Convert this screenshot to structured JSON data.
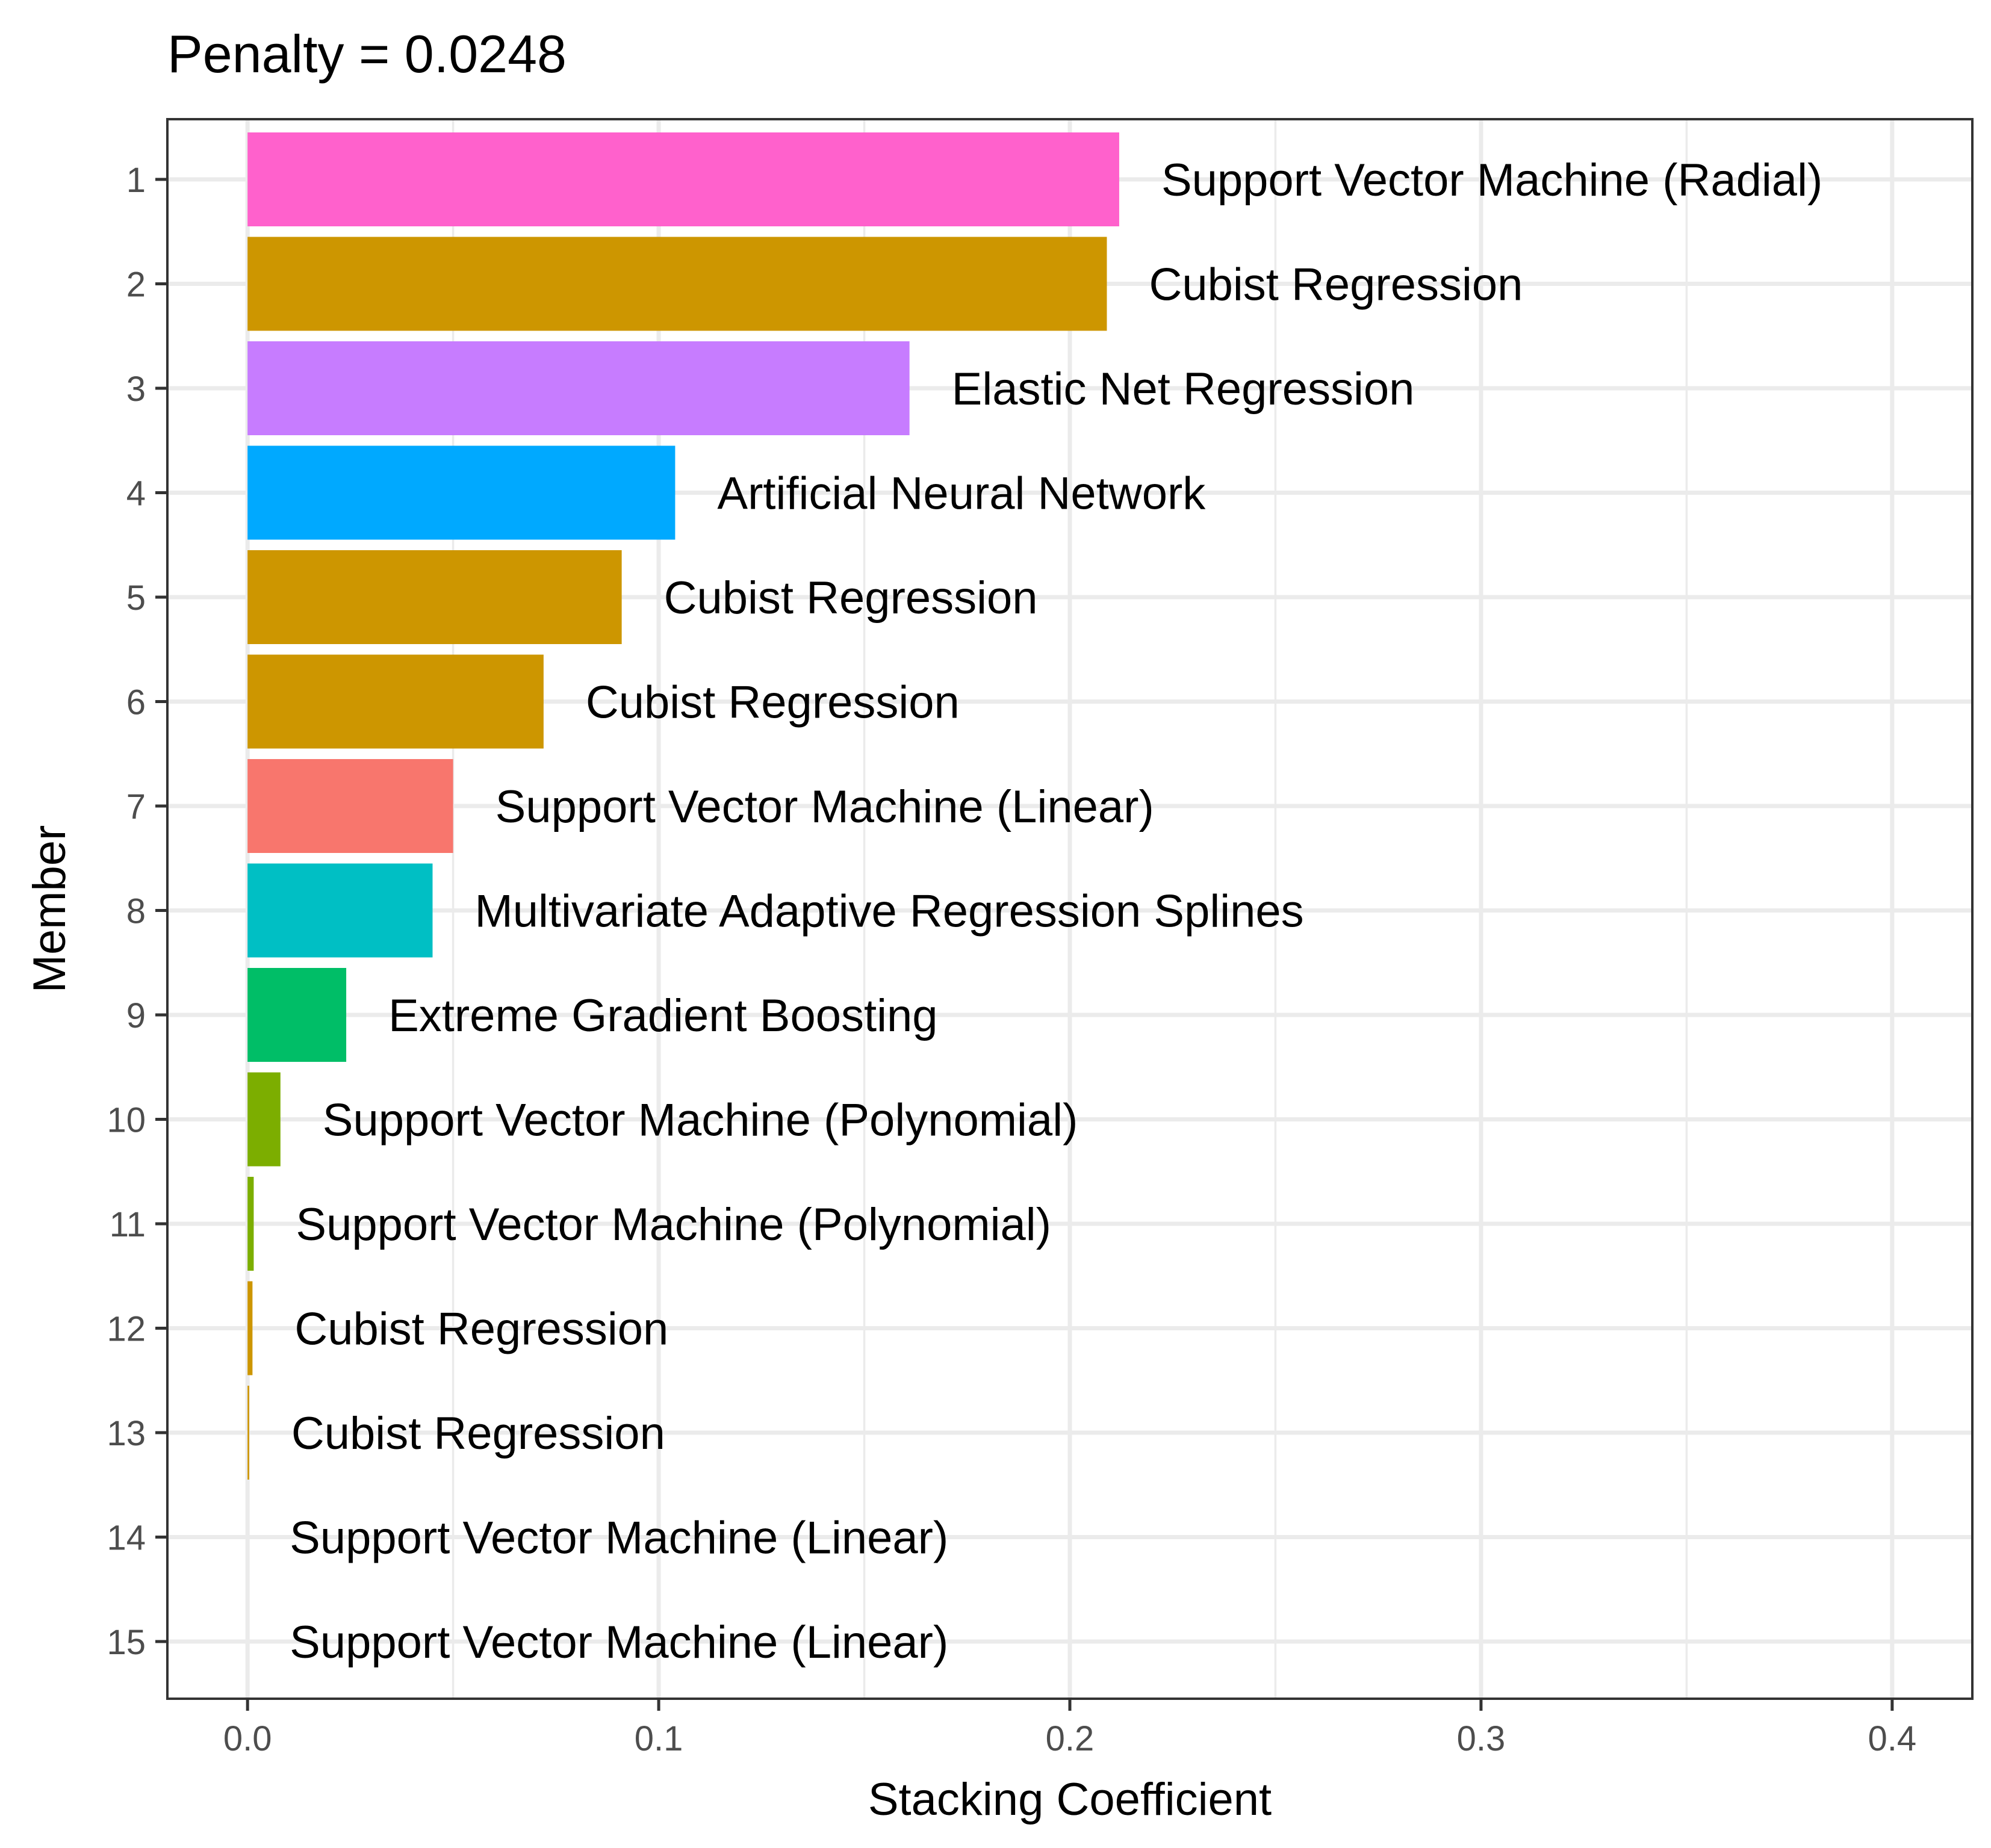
{
  "chart_data": {
    "type": "bar",
    "orientation": "horizontal",
    "title": "Penalty = 0.0248",
    "xlabel": "Stacking Coefficient",
    "ylabel": "Member",
    "xlim": [
      -0.0195,
      0.4195
    ],
    "xticks": [
      0.0,
      0.1,
      0.2,
      0.3,
      0.4
    ],
    "xtick_labels": [
      "0.0",
      "0.1",
      "0.2",
      "0.3",
      "0.4"
    ],
    "grid": true,
    "legend": "none",
    "categories": [
      "1",
      "2",
      "3",
      "4",
      "5",
      "6",
      "7",
      "8",
      "9",
      "10",
      "11",
      "12",
      "13",
      "14",
      "15"
    ],
    "values": [
      0.212,
      0.209,
      0.161,
      0.104,
      0.091,
      0.072,
      0.05,
      0.045,
      0.024,
      0.008,
      0.0015,
      0.0012,
      0.0004,
      0.0,
      0.0
    ],
    "labels": [
      "Support Vector Machine (Radial)",
      "Cubist Regression",
      "Elastic Net Regression",
      "Artificial Neural Network",
      "Cubist Regression",
      "Cubist Regression",
      "Support Vector Machine (Linear)",
      "Multivariate Adaptive Regression Splines",
      "Extreme Gradient Boosting",
      "Support Vector Machine (Polynomial)",
      "Support Vector Machine (Polynomial)",
      "Cubist Regression",
      "Cubist Regression",
      "Support Vector Machine (Linear)",
      "Support Vector Machine (Linear)"
    ],
    "colors": [
      "#FF61CC",
      "#CD9600",
      "#C77CFF",
      "#00A9FF",
      "#CD9600",
      "#CD9600",
      "#F8766D",
      "#00BFC4",
      "#00BE67",
      "#7CAE00",
      "#7CAE00",
      "#CD9600",
      "#CD9600",
      "#F8766D",
      "#F8766D"
    ]
  }
}
